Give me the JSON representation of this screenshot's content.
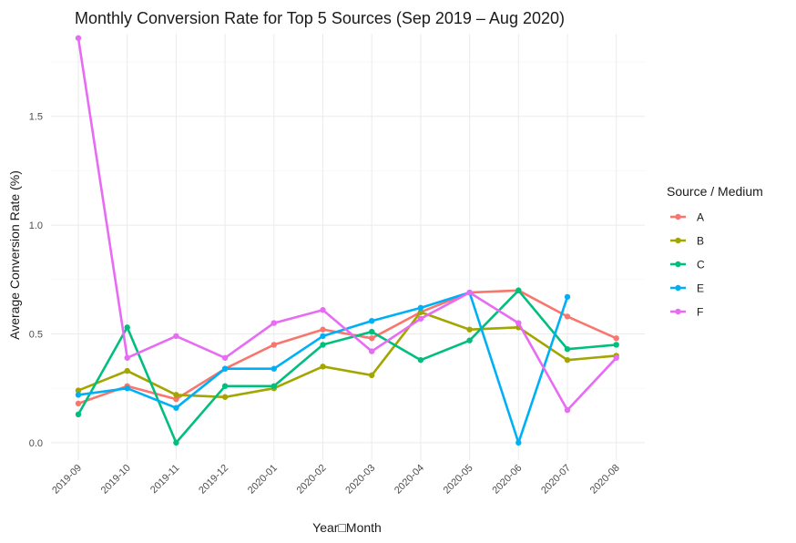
{
  "chart_data": {
    "type": "line",
    "title": "Monthly Conversion Rate for Top 5 Sources (Sep 2019 – Aug 2020)",
    "xlabel": "Year□Month",
    "ylabel": "Average Conversion Rate (%)",
    "categories": [
      "2019-09",
      "2019-10",
      "2019-11",
      "2019-12",
      "2020-01",
      "2020-02",
      "2020-03",
      "2020-04",
      "2020-05",
      "2020-06",
      "2020-07",
      "2020-08"
    ],
    "ylim": [
      -0.08,
      1.88
    ],
    "yticks": [
      0.0,
      0.5,
      1.0,
      1.5
    ],
    "ytick_labels": [
      "0.0",
      "0.5",
      "1.0",
      "1.5"
    ],
    "grid": true,
    "legend": {
      "title": "Source / Medium",
      "position": "right"
    },
    "series": [
      {
        "name": "A",
        "color": "#F8766D",
        "values": [
          0.18,
          0.26,
          0.2,
          0.34,
          0.45,
          0.52,
          0.48,
          0.6,
          0.69,
          0.7,
          0.58,
          0.48
        ]
      },
      {
        "name": "B",
        "color": "#A3A500",
        "values": [
          0.24,
          0.33,
          0.22,
          0.21,
          0.25,
          0.35,
          0.31,
          0.6,
          0.52,
          0.53,
          0.38,
          0.4
        ]
      },
      {
        "name": "C",
        "color": "#00BF7D",
        "values": [
          0.13,
          0.53,
          0.0,
          0.26,
          0.26,
          0.45,
          0.51,
          0.38,
          0.47,
          0.7,
          0.43,
          0.45
        ]
      },
      {
        "name": "E",
        "color": "#00B0F6",
        "values": [
          0.22,
          0.25,
          0.16,
          0.34,
          0.34,
          0.49,
          0.56,
          0.62,
          0.69,
          0.0,
          0.67,
          null
        ]
      },
      {
        "name": "F",
        "color": "#E76BF3",
        "values": [
          1.86,
          0.39,
          0.49,
          0.39,
          0.55,
          0.61,
          0.42,
          0.57,
          0.69,
          0.55,
          0.15,
          0.39
        ]
      }
    ]
  }
}
